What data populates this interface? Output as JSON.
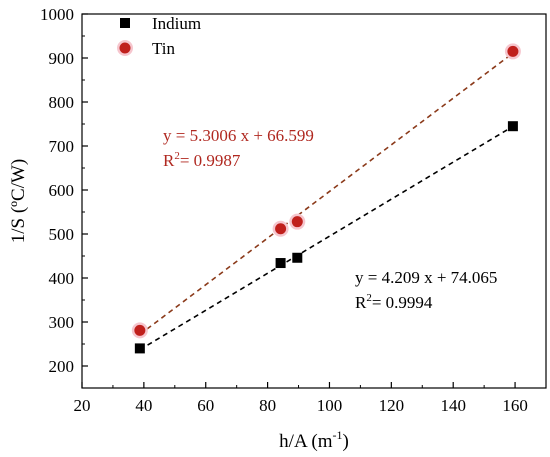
{
  "chart_data": {
    "type": "scatter",
    "xlabel_main": "h/A (m",
    "xlabel_sup": "-1",
    "xlabel_end": ")",
    "ylabel": "1/S (ºC/W)",
    "xlim": [
      20,
      170
    ],
    "ylim": [
      150,
      1000
    ],
    "xticks": [
      "20",
      "40",
      "60",
      "80",
      "100",
      "120",
      "140",
      "160"
    ],
    "xtick_values": [
      20,
      40,
      60,
      80,
      100,
      120,
      140,
      160
    ],
    "yticks": [
      "200",
      "300",
      "400",
      "500",
      "600",
      "700",
      "800",
      "900",
      "1000"
    ],
    "ytick_values": [
      200,
      300,
      400,
      500,
      600,
      700,
      800,
      900,
      1000
    ],
    "legend_position": "top-left",
    "series": [
      {
        "name": "Indium",
        "marker": "square",
        "color": "#000000",
        "x": [
          38.7,
          84.2,
          89.6,
          159.3
        ],
        "y": [
          240,
          434,
          446,
          745
        ],
        "fit": {
          "slope": 4.209,
          "intercept": 74.065,
          "color": "#000000"
        }
      },
      {
        "name": "Tin",
        "marker": "circle",
        "color": "#c0201c",
        "x": [
          38.7,
          84.2,
          89.6,
          159.3
        ],
        "y": [
          281,
          512,
          528,
          915
        ],
        "fit": {
          "slope": 5.3006,
          "intercept": 66.599,
          "color": "#8b3a1a"
        }
      }
    ],
    "annotations": [
      {
        "name": "tin-fit",
        "equation": "y = 5.3006 x + 66.599",
        "r2_label": "R",
        "r2_sup": "2",
        "r2_value": "= 0.9987",
        "color": "#b02820"
      },
      {
        "name": "indium-fit",
        "equation": "y = 4.209 x + 74.065",
        "r2_label": "R",
        "r2_sup": "2",
        "r2_value": "= 0.9994",
        "color": "#000000"
      }
    ]
  }
}
